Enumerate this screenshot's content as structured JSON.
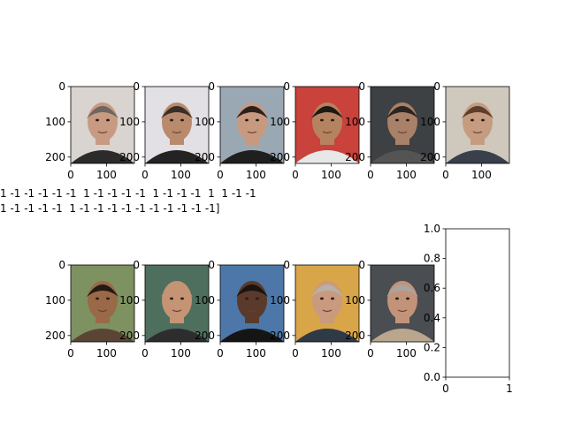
{
  "attribute_text": {
    "line1": "1 -1 -1 -1 -1 -1  1 -1 -1 -1 -1  1 -1 -1 -1  1  1 -1 -1",
    "line2": "1 -1 -1 -1 -1  1 -1 -1 -1 -1 -1 -1 -1 -1 -1 -1]"
  },
  "chart_data": [
    {
      "type": "image",
      "title": "",
      "xticks": [
        "0",
        "100"
      ],
      "yticks": [
        "0",
        "100",
        "200"
      ],
      "description": "face photo, bearded man, gray hair"
    },
    {
      "type": "image",
      "title": "",
      "xticks": [
        "0",
        "100"
      ],
      "yticks": [
        "0",
        "100",
        "200"
      ],
      "description": "face photo, shaved head man"
    },
    {
      "type": "image",
      "title": "",
      "xticks": [
        "0",
        "100"
      ],
      "yticks": [
        "0",
        "100",
        "200"
      ],
      "description": "face photo, dark haired man, stubble"
    },
    {
      "type": "image",
      "title": "",
      "xticks": [
        "0",
        "100"
      ],
      "yticks": [
        "0",
        "100",
        "200"
      ],
      "description": "face photo, man in front of red sign"
    },
    {
      "type": "image",
      "title": "",
      "xticks": [
        "0",
        "100"
      ],
      "yticks": [
        "0",
        "100",
        "200"
      ],
      "description": "face photo, man with goatee"
    },
    {
      "type": "image",
      "title": "",
      "xticks": [
        "0",
        "100"
      ],
      "yticks": [
        "0",
        "100",
        "200"
      ],
      "description": "face photo, man with brown hair, suit"
    },
    {
      "type": "image",
      "title": "",
      "xticks": [
        "0",
        "100"
      ],
      "yticks": [
        "0",
        "100",
        "200"
      ],
      "description": "face photo, curly haired man, greenery"
    },
    {
      "type": "image",
      "title": "",
      "xticks": [
        "0",
        "100"
      ],
      "yticks": [
        "0",
        "100",
        "200"
      ],
      "description": "face photo, bald man"
    },
    {
      "type": "image",
      "title": "",
      "xticks": [
        "0",
        "100"
      ],
      "yticks": [
        "0",
        "100",
        "200"
      ],
      "description": "face photo, man on blue backdrop"
    },
    {
      "type": "image",
      "title": "",
      "xticks": [
        "0",
        "100"
      ],
      "yticks": [
        "0",
        "100",
        "200"
      ],
      "description": "face photo, man with glasses"
    },
    {
      "type": "image",
      "title": "",
      "xticks": [
        "0",
        "100"
      ],
      "yticks": [
        "0",
        "100",
        "200"
      ],
      "description": "face photo, gray haired man"
    },
    {
      "type": "line",
      "title": "",
      "series": [],
      "xlim": [
        0,
        1
      ],
      "ylim": [
        0,
        1
      ],
      "xticks": [
        "0",
        "1"
      ],
      "yticks": [
        "0.0",
        "0.2",
        "0.4",
        "0.6",
        "0.8",
        "1.0"
      ]
    }
  ]
}
